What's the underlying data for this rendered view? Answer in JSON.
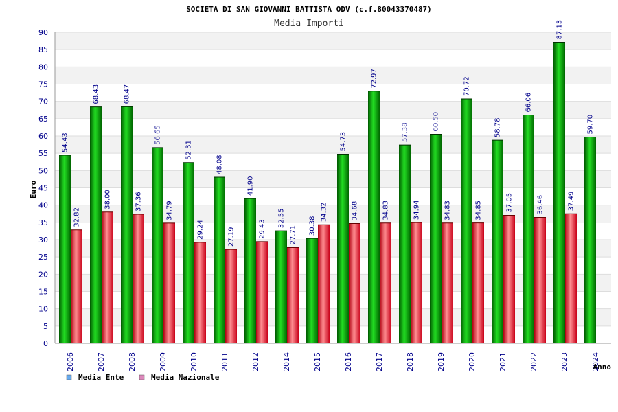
{
  "chart_data": {
    "type": "bar",
    "title": "SOCIETA DI SAN GIOVANNI BATTISTA ODV (c.f.80043370487)",
    "subtitle": "Media Importi",
    "xlabel": "Anno",
    "ylabel": "Euro",
    "ylim": [
      0,
      90
    ],
    "ytick_step": 5,
    "grid": true,
    "legend_position": "bottom-left",
    "categories": [
      "2006",
      "2007",
      "2008",
      "2009",
      "2010",
      "2011",
      "2012",
      "2014",
      "2015",
      "2016",
      "2017",
      "2018",
      "2019",
      "2020",
      "2021",
      "2022",
      "2023",
      "2024"
    ],
    "series": [
      {
        "name": "Media Ente",
        "legend_color": "#66aaee",
        "color": "#00b000",
        "values": [
          54.43,
          68.43,
          68.47,
          56.65,
          52.31,
          48.08,
          41.9,
          32.55,
          30.38,
          54.73,
          72.97,
          57.38,
          60.5,
          70.72,
          58.78,
          66.06,
          87.13,
          59.7
        ],
        "labels": [
          "54.43",
          "68.43",
          "68.47",
          "56.65",
          "52.31",
          "48.08",
          "41.90",
          "32.55",
          "30.38",
          "54.73",
          "72.97",
          "57.38",
          "60.50",
          "70.72",
          "58.78",
          "66.06",
          "87.13",
          "59.70"
        ]
      },
      {
        "name": "Media Nazionale",
        "legend_color": "#dd88bb",
        "color": "#e8202a",
        "values": [
          32.82,
          38.0,
          37.36,
          34.79,
          29.24,
          27.19,
          29.43,
          27.71,
          34.32,
          34.68,
          34.83,
          34.94,
          34.83,
          34.85,
          37.05,
          36.46,
          37.49,
          null
        ],
        "labels": [
          "32.82",
          "38.00",
          "37.36",
          "34.79",
          "29.24",
          "27.19",
          "29.43",
          "27.71",
          "34.32",
          "34.68",
          "34.83",
          "34.94",
          "34.83",
          "34.85",
          "37.05",
          "36.46",
          "37.49",
          null
        ]
      }
    ]
  }
}
